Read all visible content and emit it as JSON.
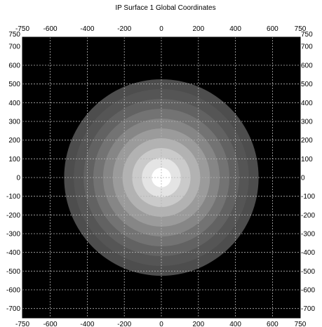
{
  "chart_data": {
    "type": "heatmap",
    "title": "IP Surface 1    Global Coordinates",
    "xlabel": "",
    "ylabel": "",
    "xlim": [
      -750,
      750
    ],
    "ylim": [
      -750,
      750
    ],
    "grid": true,
    "legend": "none",
    "colors": {
      "background": "#000000",
      "plot_border": "#000000",
      "grid": "#b4b4b4",
      "center": "#ffffff",
      "edge": "#505050"
    },
    "x_ticks": [
      {
        "value": -750,
        "label": "-750"
      },
      {
        "value": -600,
        "label": "-600"
      },
      {
        "value": -400,
        "label": "-400"
      },
      {
        "value": -200,
        "label": "-200"
      },
      {
        "value": 0,
        "label": "0"
      },
      {
        "value": 200,
        "label": "200"
      },
      {
        "value": 400,
        "label": "400"
      },
      {
        "value": 600,
        "label": "600"
      },
      {
        "value": 750,
        "label": "750"
      }
    ],
    "y_ticks": [
      {
        "value": 750,
        "label": "750"
      },
      {
        "value": 700,
        "label": "700"
      },
      {
        "value": 600,
        "label": "600"
      },
      {
        "value": 500,
        "label": "500"
      },
      {
        "value": 400,
        "label": "400"
      },
      {
        "value": 300,
        "label": "300"
      },
      {
        "value": 200,
        "label": "200"
      },
      {
        "value": 100,
        "label": "100"
      },
      {
        "value": 0,
        "label": "0"
      },
      {
        "value": -100,
        "label": "-100"
      },
      {
        "value": -200,
        "label": "-200"
      },
      {
        "value": -300,
        "label": "-300"
      },
      {
        "value": -400,
        "label": "-400"
      },
      {
        "value": -500,
        "label": "-500"
      },
      {
        "value": -600,
        "label": "-600"
      },
      {
        "value": -700,
        "label": "-700"
      }
    ],
    "grid_x": [
      -600,
      -400,
      -200,
      0,
      200,
      400,
      600
    ],
    "grid_y": [
      600,
      500,
      400,
      300,
      200,
      100,
      0,
      -100,
      -200,
      -300,
      -400,
      -500,
      -600,
      -700
    ],
    "surface": {
      "shape": "disk",
      "center": [
        0,
        0
      ],
      "radius": 525,
      "levels": 10,
      "intensity_center": 1.0,
      "intensity_edge": 0.3
    }
  }
}
